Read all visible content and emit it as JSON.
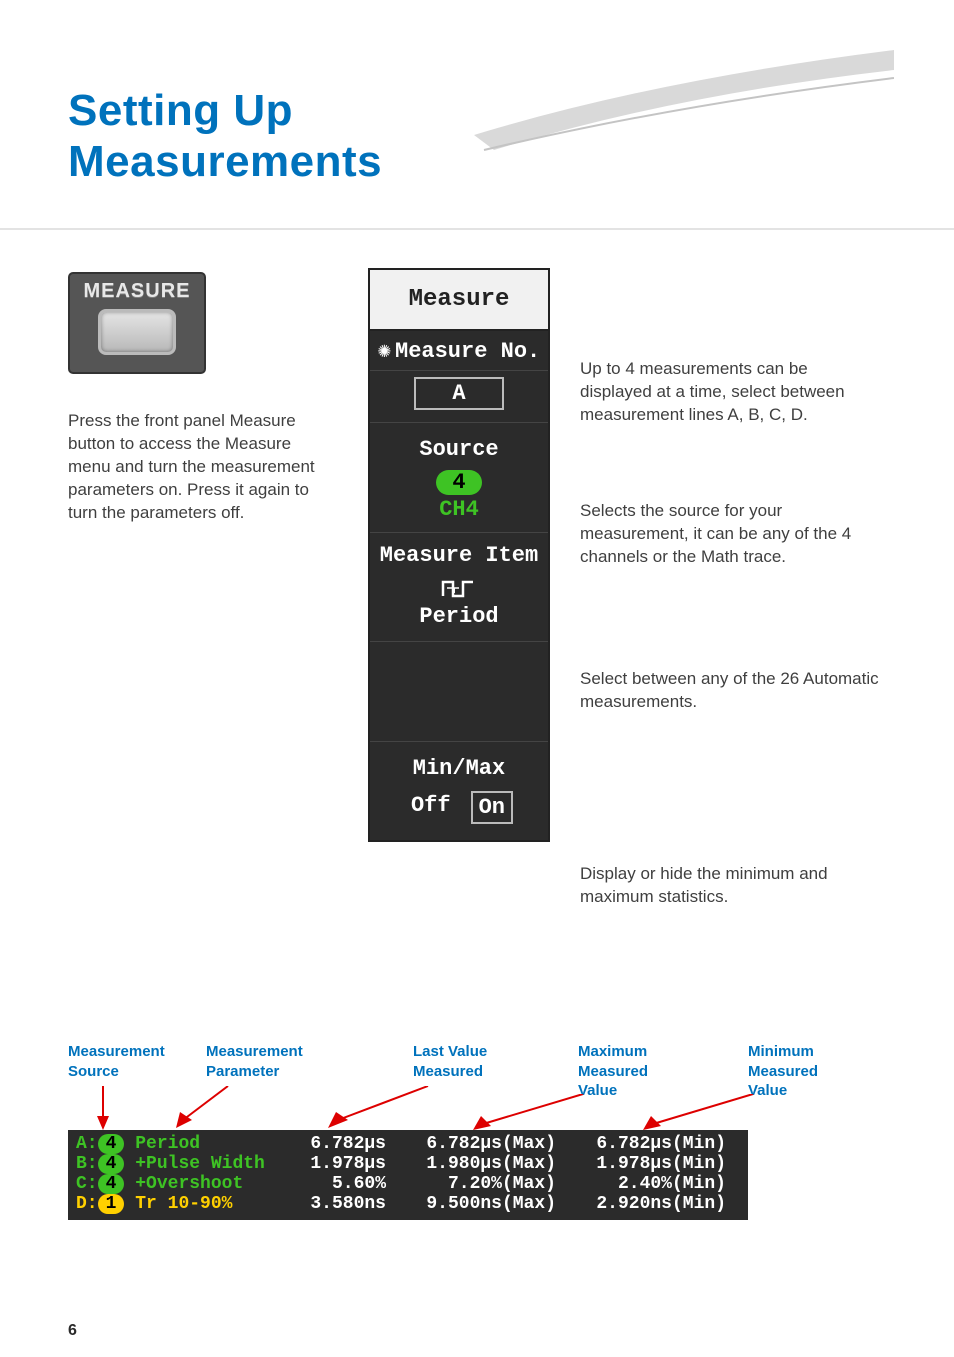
{
  "colors": {
    "brand": "#0072bc",
    "green": "#3ec324",
    "yellow": "#ffd000",
    "dark": "#2b2b2b",
    "swoosh": "#d9d9d9"
  },
  "title_line1": "Setting Up",
  "title_line2": "Measurements",
  "measure_button_label": "MEASURE",
  "left_description": "Press the front panel Measure button to access the Measure menu and turn the measurement parameters on. Press it again to turn the parameters off.",
  "menu": {
    "header": "Measure",
    "measure_no": {
      "label": "Measure No.",
      "value": "A"
    },
    "source": {
      "label": "Source",
      "channel_num": "4",
      "channel_label": "CH4"
    },
    "measure_item": {
      "label": "Measure Item",
      "value": "Period"
    },
    "minmax": {
      "label": "Min/Max",
      "off": "Off",
      "on": "On"
    }
  },
  "right_desc_measure_no": "Up to 4 measurements can be displayed at a time, select between measurement lines A, B, C, D.",
  "right_desc_source": "Selects the source for your measurement, it can be any of the 4 channels or the Math trace.",
  "right_desc_measure_item": "Select between any of the 26 Automatic measurements.",
  "right_desc_minmax": "Display or hide the minimum and maximum statistics.",
  "column_labels": {
    "source": "Measurement\nSource",
    "parameter": "Measurement\nParameter",
    "last": "Last Value\nMeasured",
    "max": "Maximum\nMeasured\nValue",
    "min": "Minimum\nMeasured\nValue"
  },
  "results": {
    "rows": [
      {
        "prefix": "A:",
        "ch": "4",
        "ch_color": "g",
        "param": "Period",
        "val": "6.782µs",
        "max": "6.782µs(Max)",
        "min": "6.782µs(Min)"
      },
      {
        "prefix": "B:",
        "ch": "4",
        "ch_color": "g",
        "param": "+Pulse Width",
        "val": "1.978µs",
        "max": "1.980µs(Max)",
        "min": "1.978µs(Min)"
      },
      {
        "prefix": "C:",
        "ch": "4",
        "ch_color": "g",
        "param": "+Overshoot",
        "val": "5.60%",
        "max": "7.20%(Max)",
        "min": "2.40%(Min)"
      },
      {
        "prefix": "D:",
        "ch": "1",
        "ch_color": "y",
        "param": "Tr 10-90%",
        "val": "3.580ns",
        "max": "9.500ns(Max)",
        "min": "2.920ns(Min)"
      }
    ]
  },
  "page_number": "6"
}
